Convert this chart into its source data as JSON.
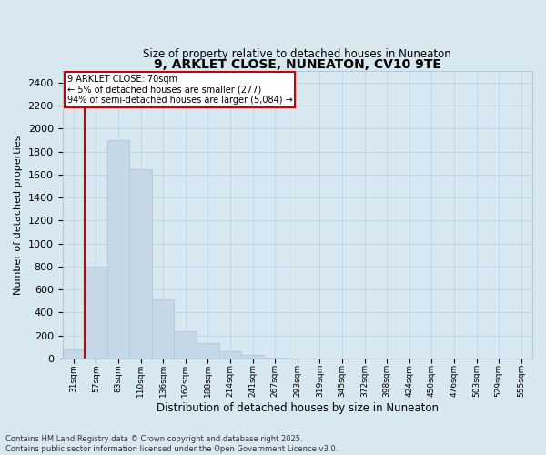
{
  "title": "9, ARKLET CLOSE, NUNEATON, CV10 9TE",
  "subtitle": "Size of property relative to detached houses in Nuneaton",
  "xlabel": "Distribution of detached houses by size in Nuneaton",
  "ylabel": "Number of detached properties",
  "footer_line1": "Contains HM Land Registry data © Crown copyright and database right 2025.",
  "footer_line2": "Contains public sector information licensed under the Open Government Licence v3.0.",
  "annotation_title": "9 ARKLET CLOSE: 70sqm",
  "annotation_line1": "← 5% of detached houses are smaller (277)",
  "annotation_line2": "94% of semi-detached houses are larger (5,084) →",
  "bar_color": "#c5d8e8",
  "bar_edge_color": "#a8c4d8",
  "grid_color": "#b8cedd",
  "background_color": "#d8e8f0",
  "vline_color": "#cc0000",
  "annotation_box_color": "#cc0000",
  "categories": [
    "31sqm",
    "57sqm",
    "83sqm",
    "110sqm",
    "136sqm",
    "162sqm",
    "188sqm",
    "214sqm",
    "241sqm",
    "267sqm",
    "293sqm",
    "319sqm",
    "345sqm",
    "372sqm",
    "398sqm",
    "424sqm",
    "450sqm",
    "476sqm",
    "503sqm",
    "529sqm",
    "555sqm"
  ],
  "values": [
    80,
    800,
    1900,
    1650,
    510,
    240,
    130,
    60,
    30,
    10,
    0,
    0,
    0,
    0,
    0,
    0,
    0,
    0,
    0,
    0,
    0
  ],
  "ylim": [
    0,
    2500
  ],
  "yticks": [
    0,
    200,
    400,
    600,
    800,
    1000,
    1200,
    1400,
    1600,
    1800,
    2000,
    2200,
    2400
  ],
  "vline_x": 0.5,
  "figsize": [
    6.0,
    5.0
  ],
  "dpi": 100
}
